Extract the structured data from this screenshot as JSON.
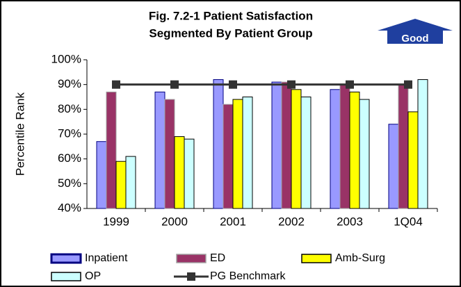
{
  "chart_data": {
    "type": "bar",
    "title": "Fig. 7.2-1 Patient Satisfaction",
    "subtitle": "Segmented By Patient Group",
    "annotation": "Good",
    "ylabel": "Percentile Rank",
    "categories": [
      "1999",
      "2000",
      "2001",
      "2002",
      "2003",
      "1Q04"
    ],
    "series": [
      {
        "name": "Inpatient",
        "color": "#9999ff",
        "edgecolor": "#000080",
        "values": [
          67,
          87,
          92,
          91,
          88,
          74
        ]
      },
      {
        "name": "ED",
        "color": "#993366",
        "edgecolor": "#a0a0a0",
        "values": [
          87,
          84,
          82,
          91,
          90,
          90
        ]
      },
      {
        "name": "Amb-Surg",
        "color": "#ffff00",
        "edgecolor": "#000000",
        "values": [
          59,
          69,
          84,
          88,
          87,
          79
        ]
      },
      {
        "name": "OP",
        "color": "#ccffff",
        "edgecolor": "#000000",
        "values": [
          61,
          68,
          85,
          85,
          84,
          92
        ]
      },
      {
        "name": "PG Benchmark",
        "type": "line",
        "color": "#333333",
        "values": [
          90,
          90,
          90,
          90,
          90,
          90
        ]
      }
    ],
    "ylim": [
      40,
      100
    ],
    "yticks": [
      {
        "value": 40,
        "label": "40%"
      },
      {
        "value": 50,
        "label": "50%"
      },
      {
        "value": 60,
        "label": "60%"
      },
      {
        "value": 70,
        "label": "70%"
      },
      {
        "value": 80,
        "label": "80%"
      },
      {
        "value": 90,
        "label": "90%"
      },
      {
        "value": 100,
        "label": "100%"
      }
    ],
    "grid": false
  }
}
